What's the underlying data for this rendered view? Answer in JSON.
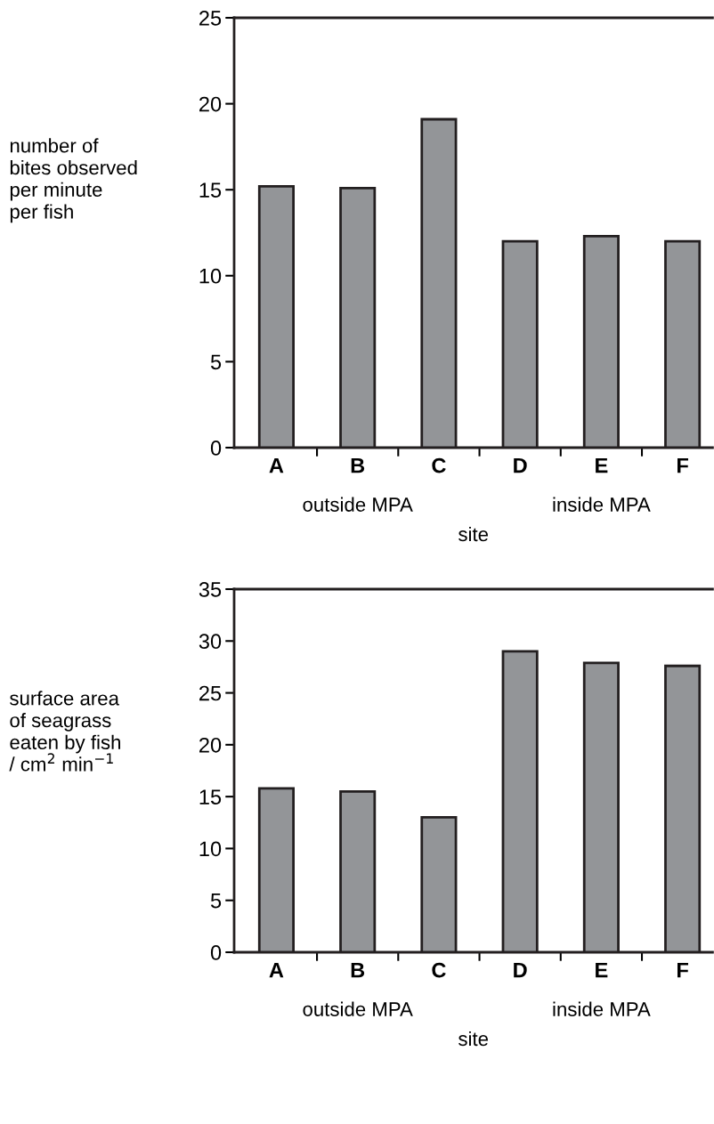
{
  "chart_data": [
    {
      "type": "bar",
      "categories": [
        "A",
        "B",
        "C",
        "D",
        "E",
        "F"
      ],
      "values": [
        15.2,
        15.1,
        19.1,
        12.0,
        12.3,
        12.0
      ],
      "color": "#939598",
      "ylim": [
        0,
        25
      ],
      "yticks": [
        0,
        5,
        10,
        15,
        20,
        25
      ],
      "ylabel": "number of\nbites observed\nper minute\nper fish",
      "xlabel": "site",
      "annotations": [
        "outside MPA",
        "inside MPA"
      ]
    },
    {
      "type": "bar",
      "categories": [
        "A",
        "B",
        "C",
        "D",
        "E",
        "F"
      ],
      "values": [
        15.8,
        15.5,
        13.0,
        29.0,
        27.9,
        27.6
      ],
      "color": "#939598",
      "ylim": [
        0,
        35
      ],
      "yticks": [
        0,
        5,
        10,
        15,
        20,
        25,
        30,
        35
      ],
      "ylabel": "surface area\nof seagrass\neaten by fish\n/ cm$^{2}$ min$^{−1}$",
      "xlabel": "site",
      "annotations": [
        "outside MPA",
        "inside MPA"
      ]
    }
  ]
}
